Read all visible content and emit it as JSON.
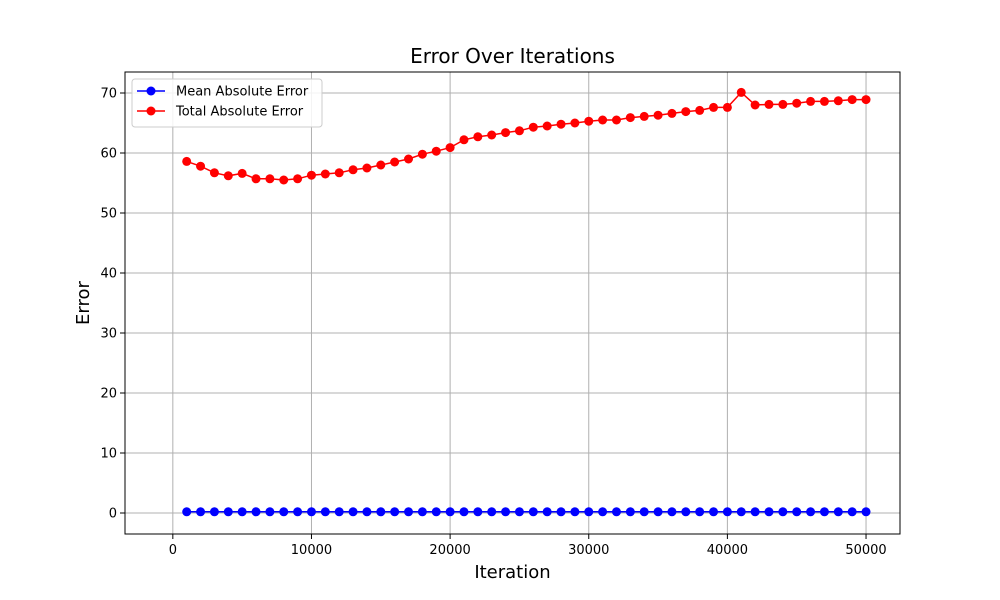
{
  "chart_data": {
    "type": "line",
    "title": "Error Over Iterations",
    "xlabel": "Iteration",
    "ylabel": "Error",
    "xlim": [
      -3450,
      52450
    ],
    "ylim": [
      -3.5,
      73.5
    ],
    "xticks": [
      0,
      10000,
      20000,
      30000,
      40000,
      50000
    ],
    "xtick_labels": [
      "0",
      "10000",
      "20000",
      "30000",
      "40000",
      "50000"
    ],
    "yticks": [
      0,
      10,
      20,
      30,
      40,
      50,
      60,
      70
    ],
    "ytick_labels": [
      "0",
      "10",
      "20",
      "30",
      "40",
      "50",
      "60",
      "70"
    ],
    "grid": true,
    "legend_position": "top-left",
    "x": [
      1000,
      2000,
      3000,
      4000,
      5000,
      6000,
      7000,
      8000,
      9000,
      10000,
      11000,
      12000,
      13000,
      14000,
      15000,
      16000,
      17000,
      18000,
      19000,
      20000,
      21000,
      22000,
      23000,
      24000,
      25000,
      26000,
      27000,
      28000,
      29000,
      30000,
      31000,
      32000,
      33000,
      34000,
      35000,
      36000,
      37000,
      38000,
      39000,
      40000,
      41000,
      42000,
      43000,
      44000,
      45000,
      46000,
      47000,
      48000,
      49000,
      50000
    ],
    "series": [
      {
        "name": "Mean Absolute Error",
        "color": "#0000ff",
        "values": [
          0.2,
          0.2,
          0.2,
          0.2,
          0.2,
          0.2,
          0.2,
          0.2,
          0.2,
          0.2,
          0.2,
          0.2,
          0.2,
          0.2,
          0.2,
          0.2,
          0.2,
          0.2,
          0.2,
          0.2,
          0.2,
          0.2,
          0.2,
          0.2,
          0.2,
          0.2,
          0.2,
          0.2,
          0.2,
          0.2,
          0.2,
          0.2,
          0.2,
          0.2,
          0.2,
          0.2,
          0.2,
          0.2,
          0.2,
          0.2,
          0.2,
          0.2,
          0.2,
          0.2,
          0.2,
          0.2,
          0.2,
          0.2,
          0.2,
          0.2
        ]
      },
      {
        "name": "Total Absolute Error",
        "color": "#ff0000",
        "values": [
          58.6,
          57.8,
          56.7,
          56.2,
          56.6,
          55.7,
          55.7,
          55.5,
          55.7,
          56.3,
          56.5,
          56.7,
          57.2,
          57.5,
          58.0,
          58.5,
          59.0,
          59.8,
          60.3,
          60.9,
          62.2,
          62.7,
          63.0,
          63.4,
          63.7,
          64.3,
          64.5,
          64.8,
          65.0,
          65.3,
          65.5,
          65.5,
          65.9,
          66.1,
          66.3,
          66.6,
          66.9,
          67.1,
          67.6,
          67.6,
          70.1,
          68.0,
          68.1,
          68.1,
          68.3,
          68.6,
          68.6,
          68.7,
          68.9,
          68.9
        ]
      }
    ]
  }
}
